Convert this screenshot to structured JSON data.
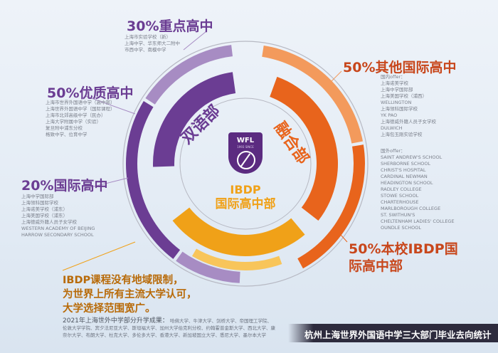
{
  "colors": {
    "purple": "#6b3d93",
    "purple_light": "#a78cc3",
    "orange": "#e8641c",
    "orange_light": "#f39a5c",
    "gold": "#f0a118",
    "gold_light": "#f8c55a",
    "grey_ring": "#b7b9c3",
    "footer_bg": "#2d2b3d"
  },
  "chart_data": {
    "type": "pie",
    "title": "杭州上海世界外国语中学三大部门毕业去向统计",
    "series": [
      {
        "name": "双语部",
        "slices": [
          {
            "label": "30%重点高中",
            "percent": 30,
            "note": "上海市实验学校（新）\n上海中学、华东师大二附中\n市西中学、南模中学"
          },
          {
            "label": "50%优质高中",
            "percent": 50,
            "note": "上海市世界外国语中学（高中部）\n上海世界外国语中学（国际课程）\n上海市北郊高级中学（民办）\n上海大学附属中学（实验）\n复旦附中浦东分校\n格致中学、位育中学"
          },
          {
            "label": "20%国际高中",
            "percent": 20,
            "note": "上海中学国际部\n上海领科国际学校\n上海诺美学校（浦东）\n上海美国学校（浦东）\n上海德威外籍人员子女学校\nWESTERN ACADEMY OF BEIJING\nHARROW SECONDARY SCHOOL"
          }
        ]
      },
      {
        "name": "融合部",
        "slices": [
          {
            "label": "50%其他国际高中",
            "percent": 50,
            "note": "国内offer：\n上海诺美学校\n上海中学国际部\n上海美国学校（浦西）\nWELLINGTON\n上海领科国际学校\nYK PAO\n上海德威外籍人员子女学校\nDULWICH\n上海包玉刚实验学校"
          },
          {
            "label": "50%本校IBDP国际高中部",
            "percent": 50,
            "note": "国外offer：\nSAINT ANDREW'S SCHOOL\nSHERBORNE SCHOOL\nCHRIST'S HOSPITAL\nCARDINAL NEWMAN\nHEADINGTON SCHOOL\nRADLEY COLLEGE\nSTOWE SCHOOL\nCHARTERHOUSE\nMARLBOROUGH COLLEGE\nST. SWITHUN'S\nCHELTENHAM LADIES' COLLEGE\nOUNDLE SCHOOL"
          }
        ]
      },
      {
        "name": "IBDP国际高中部",
        "slices": [
          {
            "label": "IBDP课程没有地域限制，为世界上所有主流大学认可，大学选择范围宽广。",
            "percent": 100
          }
        ]
      }
    ]
  },
  "labels": {
    "ring_bilingual": "双语部",
    "ring_fusion": "融合部",
    "ring_ibdp_line1": "IBDP",
    "ring_ibdp_line2": "国际高中部",
    "logo_text": "WFL",
    "logo_sub": "1993 SINCE"
  },
  "ibdp_note": "IBDP课程没有地域限制，\n为世界上所有主流大学认可，\n大学选择范围宽广。",
  "summary": {
    "heading": "2021年上海世外中学部分升学成果：",
    "body": "哈佛大学、牛津大学、剑桥大学、帝国理工学院、伦敦大学学院、宾夕法尼亚大学、斯坦福大学、加州大学伯克利分校、约翰霍普金斯大学、西北大学、康奈尔大学、布朗大学、杜克大学、多伦多大学、香港大学、新加坡国立大学、悉尼大学、墨尔本大学"
  },
  "footer": "杭州上海世界外国语中学三大部门毕业去向统计"
}
